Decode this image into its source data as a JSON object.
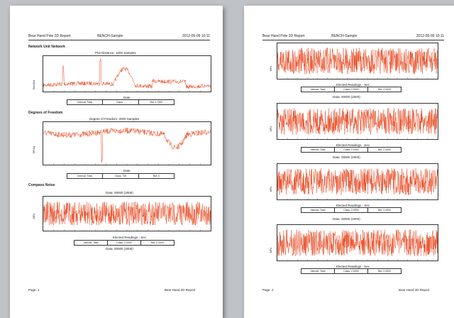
{
  "header": {
    "left": "Bear Hand Pole 2D Report",
    "mid": "BENCH-Sample",
    "right": "2012-05-09 10:11"
  },
  "left_page": {
    "sections": [
      {
        "title": "Network Unit Network",
        "plot_title": "Plot Distance: 1000 Samples",
        "xlabel": "Date",
        "ylabel": "Dist Dist",
        "info": [
          "Interval: Total",
          "Class: -",
          "Bid: 2.7500"
        ]
      },
      {
        "title": "Degrees of Freedom",
        "plot_title": "Degree of Freedom: 2000 Samples",
        "xlabel": "Date",
        "ylabel": "DFreq",
        "info": [
          "Interval: Total",
          "Class: 700",
          "Bid: 0"
        ]
      },
      {
        "title": "Compass Noise",
        "plot_title": "Data: 00000 (2000)",
        "xlabel": "Elected Readings - Sec",
        "ylabel": "MPa",
        "info": [
          "Interval: Total",
          "Class: 2.0000",
          "Bid: 2.0000"
        ]
      }
    ],
    "bottom_caption": "Data: 00000 (2000)",
    "footer_left": "Page: 1",
    "footer_right": "Bear Hand 2D Report"
  },
  "right_page": {
    "sections": [
      {
        "ylabel": "MPa",
        "xlabel": "Elected Readings - Sec",
        "info": [
          "Interval: Total",
          "Class: 2.0000",
          "Bid: 2.0000"
        ],
        "caption": "Data: 00000 (2000)"
      },
      {
        "ylabel": "MPa",
        "xlabel": "Elected Readings - Sec",
        "info": [
          "Interval: Total",
          "Class: 2.0000",
          "Bid: 2.0000"
        ],
        "caption": "Data: 00000 (2000)"
      },
      {
        "ylabel": "MPa",
        "xlabel": "Elected Readings - Sec",
        "info": [
          "Interval: Total",
          "Class: 2.0000",
          "Bid: 2.0000"
        ],
        "caption": "Data: 00000 (2000)"
      },
      {
        "ylabel": "MPa",
        "xlabel": "Elected Readings - Sec",
        "info": [
          "Interval: Total",
          "Class: 2.0000",
          "Bid: 2.0000"
        ],
        "caption": ""
      }
    ],
    "footer_left": "Page: 2",
    "footer_right": "Bear Hand 2D Report"
  },
  "colors": {
    "trace": "#e8461e",
    "trace_light": "#f4a27c",
    "axis": "#333333"
  }
}
